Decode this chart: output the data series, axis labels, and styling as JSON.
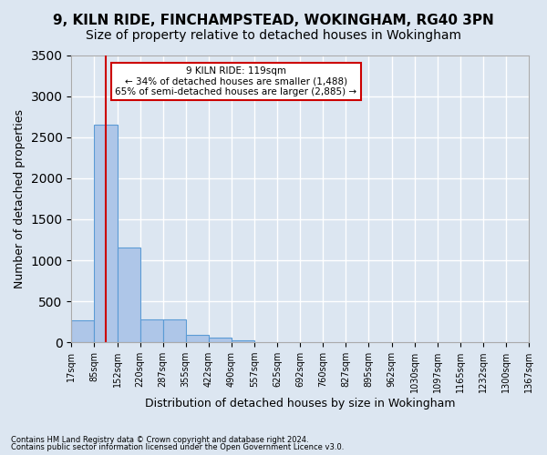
{
  "title1": "9, KILN RIDE, FINCHAMPSTEAD, WOKINGHAM, RG40 3PN",
  "title2": "Size of property relative to detached houses in Wokingham",
  "xlabel": "Distribution of detached houses by size in Wokingham",
  "ylabel": "Number of detached properties",
  "footer1": "Contains HM Land Registry data © Crown copyright and database right 2024.",
  "footer2": "Contains public sector information licensed under the Open Government Licence v3.0.",
  "bin_labels": [
    "17sqm",
    "85sqm",
    "152sqm",
    "220sqm",
    "287sqm",
    "355sqm",
    "422sqm",
    "490sqm",
    "557sqm",
    "625sqm",
    "692sqm",
    "760sqm",
    "827sqm",
    "895sqm",
    "962sqm",
    "1030sqm",
    "1097sqm",
    "1165sqm",
    "1232sqm",
    "1300sqm",
    "1367sqm"
  ],
  "bar_heights": [
    270,
    2650,
    1150,
    285,
    285,
    90,
    55,
    30,
    5,
    2,
    1,
    1,
    0,
    0,
    0,
    0,
    0,
    0,
    0,
    0
  ],
  "bar_color": "#aec6e8",
  "bar_edge_color": "#5b9bd5",
  "background_color": "#dce6f1",
  "grid_color": "#ffffff",
  "property_label": "9 KILN RIDE: 119sqm",
  "annotation_line1": "← 34% of detached houses are smaller (1,488)",
  "annotation_line2": "65% of semi-detached houses are larger (2,885) →",
  "red_line_color": "#cc0000",
  "annotation_box_color": "#cc0000",
  "ylim": [
    0,
    3500
  ],
  "yticks": [
    0,
    500,
    1000,
    1500,
    2000,
    2500,
    3000,
    3500
  ],
  "title1_fontsize": 11,
  "title2_fontsize": 10,
  "xlabel_fontsize": 9,
  "ylabel_fontsize": 9
}
